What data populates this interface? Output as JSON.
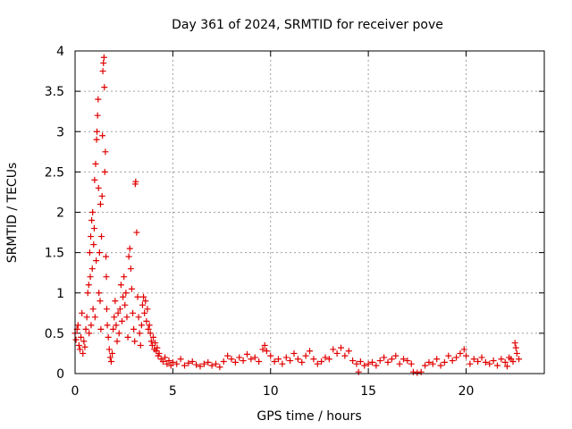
{
  "chart_data": {
    "type": "scatter",
    "title": "Day 361 of 2024, SRMTID for receiver pove",
    "xlabel": "GPS time / hours",
    "ylabel": "SRMTID / TECUs",
    "xlim": [
      0,
      24
    ],
    "ylim": [
      0,
      4
    ],
    "xticks": [
      0,
      5,
      10,
      15,
      20
    ],
    "yticks": [
      0,
      0.5,
      1,
      1.5,
      2,
      2.5,
      3,
      3.5,
      4
    ],
    "xtick_labels": [
      "0",
      "5",
      "10",
      "15",
      "20"
    ],
    "ytick_labels": [
      "0",
      "0.5",
      "1",
      "1.5",
      "2",
      "2.5",
      "3",
      "3.5",
      "4"
    ],
    "grid": true,
    "marker": "+",
    "color": "#e00000",
    "series": [
      {
        "name": "SRMTID",
        "points": [
          [
            0.0,
            0.5
          ],
          [
            0.05,
            0.42
          ],
          [
            0.1,
            0.55
          ],
          [
            0.15,
            0.6
          ],
          [
            0.2,
            0.35
          ],
          [
            0.25,
            0.3
          ],
          [
            0.3,
            0.45
          ],
          [
            0.35,
            0.75
          ],
          [
            0.4,
            0.25
          ],
          [
            0.45,
            0.4
          ],
          [
            0.5,
            0.33
          ],
          [
            0.55,
            0.55
          ],
          [
            0.6,
            0.7
          ],
          [
            0.65,
            1.0
          ],
          [
            0.7,
            1.1
          ],
          [
            0.72,
            0.5
          ],
          [
            0.75,
            1.5
          ],
          [
            0.78,
            1.2
          ],
          [
            0.8,
            1.7
          ],
          [
            0.82,
            0.6
          ],
          [
            0.85,
            1.9
          ],
          [
            0.88,
            1.3
          ],
          [
            0.9,
            2.0
          ],
          [
            0.92,
            0.8
          ],
          [
            0.95,
            1.6
          ],
          [
            0.98,
            1.8
          ],
          [
            1.0,
            2.4
          ],
          [
            1.02,
            0.7
          ],
          [
            1.05,
            2.6
          ],
          [
            1.08,
            1.4
          ],
          [
            1.1,
            2.9
          ],
          [
            1.12,
            3.0
          ],
          [
            1.15,
            3.2
          ],
          [
            1.18,
            3.4
          ],
          [
            1.2,
            2.3
          ],
          [
            1.22,
            1.0
          ],
          [
            1.25,
            1.5
          ],
          [
            1.28,
            0.9
          ],
          [
            1.3,
            2.1
          ],
          [
            1.32,
            0.55
          ],
          [
            1.35,
            1.7
          ],
          [
            1.38,
            2.2
          ],
          [
            1.4,
            2.95
          ],
          [
            1.42,
            3.75
          ],
          [
            1.45,
            3.85
          ],
          [
            1.48,
            3.92
          ],
          [
            1.5,
            3.55
          ],
          [
            1.52,
            2.5
          ],
          [
            1.55,
            2.75
          ],
          [
            1.58,
            1.45
          ],
          [
            1.6,
            1.2
          ],
          [
            1.62,
            0.8
          ],
          [
            1.65,
            0.6
          ],
          [
            1.7,
            0.45
          ],
          [
            1.75,
            0.3
          ],
          [
            1.8,
            0.2
          ],
          [
            1.85,
            0.15
          ],
          [
            1.9,
            0.25
          ],
          [
            1.95,
            0.55
          ],
          [
            2.0,
            0.7
          ],
          [
            2.05,
            0.9
          ],
          [
            2.1,
            0.6
          ],
          [
            2.15,
            0.4
          ],
          [
            2.2,
            0.75
          ],
          [
            2.25,
            0.5
          ],
          [
            2.3,
            0.8
          ],
          [
            2.35,
            1.1
          ],
          [
            2.4,
            0.65
          ],
          [
            2.45,
            0.95
          ],
          [
            2.5,
            1.2
          ],
          [
            2.55,
            0.85
          ],
          [
            2.6,
            1.0
          ],
          [
            2.65,
            0.7
          ],
          [
            2.7,
            0.45
          ],
          [
            2.75,
            1.45
          ],
          [
            2.8,
            1.55
          ],
          [
            2.85,
            1.3
          ],
          [
            2.9,
            1.05
          ],
          [
            2.95,
            0.75
          ],
          [
            3.0,
            0.55
          ],
          [
            3.05,
            0.4
          ],
          [
            3.08,
            2.35
          ],
          [
            3.1,
            2.38
          ],
          [
            3.15,
            1.75
          ],
          [
            3.2,
            0.95
          ],
          [
            3.25,
            0.7
          ],
          [
            3.3,
            0.5
          ],
          [
            3.35,
            0.35
          ],
          [
            3.4,
            0.6
          ],
          [
            3.45,
            0.85
          ],
          [
            3.5,
            0.95
          ],
          [
            3.55,
            0.75
          ],
          [
            3.6,
            0.9
          ],
          [
            3.65,
            0.65
          ],
          [
            3.7,
            0.8
          ],
          [
            3.75,
            0.55
          ],
          [
            3.8,
            0.6
          ],
          [
            3.85,
            0.5
          ],
          [
            3.9,
            0.4
          ],
          [
            3.95,
            0.35
          ],
          [
            4.0,
            0.45
          ],
          [
            4.05,
            0.3
          ],
          [
            4.1,
            0.38
          ],
          [
            4.15,
            0.28
          ],
          [
            4.2,
            0.32
          ],
          [
            4.25,
            0.22
          ],
          [
            4.3,
            0.25
          ],
          [
            4.4,
            0.18
          ],
          [
            4.5,
            0.15
          ],
          [
            4.6,
            0.2
          ],
          [
            4.7,
            0.12
          ],
          [
            4.8,
            0.16
          ],
          [
            4.9,
            0.1
          ],
          [
            5.0,
            0.14
          ],
          [
            5.2,
            0.12
          ],
          [
            5.4,
            0.18
          ],
          [
            5.6,
            0.1
          ],
          [
            5.8,
            0.13
          ],
          [
            6.0,
            0.15
          ],
          [
            6.2,
            0.11
          ],
          [
            6.4,
            0.09
          ],
          [
            6.6,
            0.12
          ],
          [
            6.8,
            0.14
          ],
          [
            7.0,
            0.1
          ],
          [
            7.2,
            0.12
          ],
          [
            7.4,
            0.08
          ],
          [
            7.6,
            0.15
          ],
          [
            7.8,
            0.22
          ],
          [
            8.0,
            0.18
          ],
          [
            8.2,
            0.14
          ],
          [
            8.4,
            0.2
          ],
          [
            8.6,
            0.16
          ],
          [
            8.8,
            0.24
          ],
          [
            9.0,
            0.18
          ],
          [
            9.2,
            0.2
          ],
          [
            9.4,
            0.15
          ],
          [
            9.6,
            0.3
          ],
          [
            9.7,
            0.35
          ],
          [
            9.8,
            0.28
          ],
          [
            10.0,
            0.22
          ],
          [
            10.2,
            0.15
          ],
          [
            10.4,
            0.18
          ],
          [
            10.6,
            0.12
          ],
          [
            10.8,
            0.2
          ],
          [
            11.0,
            0.16
          ],
          [
            11.2,
            0.25
          ],
          [
            11.4,
            0.18
          ],
          [
            11.6,
            0.14
          ],
          [
            11.8,
            0.22
          ],
          [
            12.0,
            0.28
          ],
          [
            12.2,
            0.18
          ],
          [
            12.4,
            0.12
          ],
          [
            12.6,
            0.15
          ],
          [
            12.8,
            0.2
          ],
          [
            13.0,
            0.18
          ],
          [
            13.2,
            0.3
          ],
          [
            13.4,
            0.25
          ],
          [
            13.6,
            0.32
          ],
          [
            13.8,
            0.22
          ],
          [
            14.0,
            0.28
          ],
          [
            14.2,
            0.16
          ],
          [
            14.4,
            0.12
          ],
          [
            14.5,
            0.02
          ],
          [
            14.6,
            0.15
          ],
          [
            14.8,
            0.1
          ],
          [
            15.0,
            0.12
          ],
          [
            15.2,
            0.14
          ],
          [
            15.4,
            0.1
          ],
          [
            15.6,
            0.16
          ],
          [
            15.8,
            0.2
          ],
          [
            16.0,
            0.14
          ],
          [
            16.2,
            0.18
          ],
          [
            16.4,
            0.22
          ],
          [
            16.6,
            0.12
          ],
          [
            16.8,
            0.18
          ],
          [
            17.0,
            0.16
          ],
          [
            17.2,
            0.12
          ],
          [
            17.3,
            0.02
          ],
          [
            17.5,
            0.01
          ],
          [
            17.7,
            0.02
          ],
          [
            17.9,
            0.1
          ],
          [
            18.1,
            0.14
          ],
          [
            18.3,
            0.12
          ],
          [
            18.5,
            0.18
          ],
          [
            18.7,
            0.1
          ],
          [
            18.9,
            0.14
          ],
          [
            19.1,
            0.22
          ],
          [
            19.3,
            0.16
          ],
          [
            19.5,
            0.2
          ],
          [
            19.7,
            0.25
          ],
          [
            19.9,
            0.3
          ],
          [
            20.0,
            0.22
          ],
          [
            20.2,
            0.12
          ],
          [
            20.4,
            0.18
          ],
          [
            20.6,
            0.15
          ],
          [
            20.8,
            0.2
          ],
          [
            21.0,
            0.14
          ],
          [
            21.2,
            0.12
          ],
          [
            21.4,
            0.16
          ],
          [
            21.6,
            0.1
          ],
          [
            21.8,
            0.18
          ],
          [
            22.0,
            0.14
          ],
          [
            22.1,
            0.09
          ],
          [
            22.2,
            0.2
          ],
          [
            22.3,
            0.18
          ],
          [
            22.4,
            0.15
          ],
          [
            22.5,
            0.38
          ],
          [
            22.55,
            0.32
          ],
          [
            22.6,
            0.25
          ],
          [
            22.7,
            0.18
          ]
        ]
      }
    ]
  }
}
